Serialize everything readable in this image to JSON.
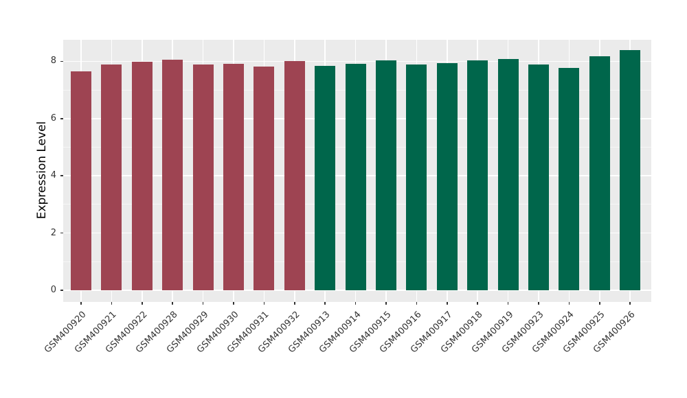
{
  "chart_data": {
    "type": "bar",
    "title": "",
    "xlabel": "",
    "ylabel": "Expression Level",
    "ylim": [
      0,
      8.76
    ],
    "yticks": [
      0,
      2,
      4,
      6,
      8
    ],
    "grid": "major+minor horizontal white, major vertical white at category centers",
    "legend_position": "none",
    "panel_background": "#EBEBEB",
    "grid_color": "#FFFFFF",
    "tick_label_color": "#333333",
    "categories": [
      "GSM400920",
      "GSM400921",
      "GSM400922",
      "GSM400928",
      "GSM400929",
      "GSM400930",
      "GSM400931",
      "GSM400932",
      "GSM400913",
      "GSM400914",
      "GSM400915",
      "GSM400916",
      "GSM400917",
      "GSM400918",
      "GSM400919",
      "GSM400923",
      "GSM400924",
      "GSM400925",
      "GSM400926"
    ],
    "values": [
      7.65,
      7.89,
      7.98,
      8.06,
      7.89,
      7.91,
      7.82,
      8.01,
      7.84,
      7.91,
      8.04,
      7.9,
      7.95,
      8.04,
      8.09,
      7.9,
      7.77,
      8.19,
      8.39
    ],
    "bar_groups": [
      "A",
      "A",
      "A",
      "A",
      "A",
      "A",
      "A",
      "A",
      "B",
      "B",
      "B",
      "B",
      "B",
      "B",
      "B",
      "B",
      "B",
      "B",
      "B"
    ],
    "group_colors": {
      "A": "#9E4452",
      "B": "#00664B"
    }
  }
}
